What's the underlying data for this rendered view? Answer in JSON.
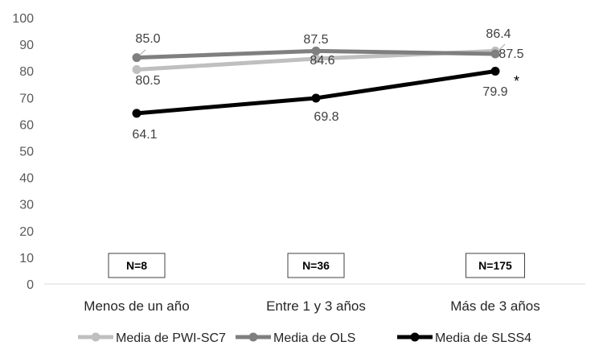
{
  "chart_data": {
    "type": "line",
    "categories": [
      "Menos de un año",
      "Entre 1 y 3 años",
      "Más de 3 años"
    ],
    "ylim": [
      0,
      100
    ],
    "yticks": [
      0,
      10,
      20,
      30,
      40,
      50,
      60,
      70,
      80,
      90,
      100
    ],
    "series": [
      {
        "name": "Media de PWI-SC7",
        "values": [
          80.5,
          84.6,
          87.5
        ],
        "labels": [
          "80.5",
          "84.6",
          "87.5"
        ],
        "color": "#bfbfbf"
      },
      {
        "name": "Media de OLS",
        "values": [
          85.0,
          87.5,
          86.4
        ],
        "labels": [
          "85.0",
          "87.5",
          "86.4"
        ],
        "color": "#7f7f7f"
      },
      {
        "name": "Media de SLSS4",
        "values": [
          64.1,
          69.8,
          79.9
        ],
        "labels": [
          "64.1",
          "69.8",
          "79.9"
        ],
        "color": "#000000"
      }
    ],
    "n_labels": [
      "N=8",
      "N=36",
      "N=175"
    ],
    "annotations": [
      "*"
    ],
    "legend": "bottom",
    "grid": false
  }
}
